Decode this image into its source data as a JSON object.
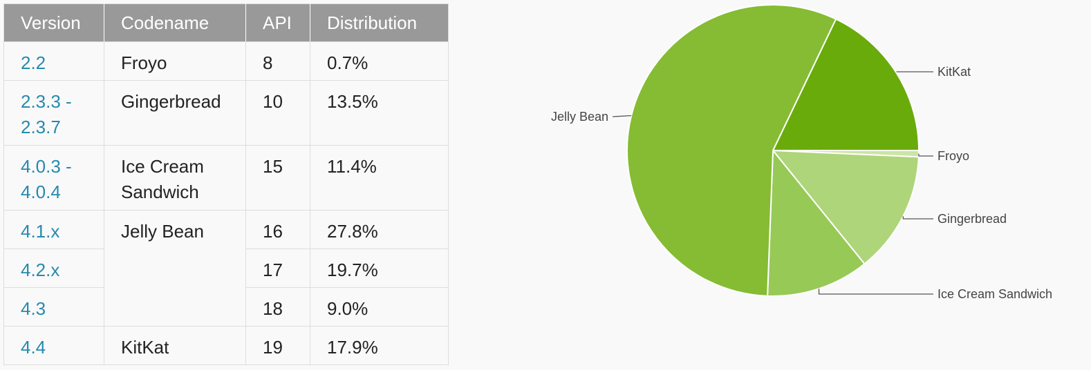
{
  "table": {
    "headers": [
      "Version",
      "Codename",
      "API",
      "Distribution"
    ],
    "rows": [
      {
        "version": "2.2",
        "codename": "Froyo",
        "api": "8",
        "distribution": "0.7%"
      },
      {
        "version": "2.3.3 -\n2.3.7",
        "codename": "Gingerbread",
        "api": "10",
        "distribution": "13.5%"
      },
      {
        "version": "4.0.3 -\n4.0.4",
        "codename": "Ice Cream\nSandwich",
        "api": "15",
        "distribution": "11.4%"
      },
      {
        "version": "4.1.x",
        "codename": "Jelly Bean",
        "api": "16",
        "distribution": "27.8%"
      },
      {
        "version": "4.2.x",
        "api": "17",
        "distribution": "19.7%"
      },
      {
        "version": "4.3",
        "api": "18",
        "distribution": "9.0%"
      },
      {
        "version": "4.4",
        "codename": "KitKat",
        "api": "19",
        "distribution": "17.9%"
      }
    ]
  },
  "chart_data": {
    "type": "pie",
    "title": "",
    "slices": [
      {
        "label": "KitKat",
        "value": 17.9,
        "color": "#6aab0c"
      },
      {
        "label": "Froyo",
        "value": 0.7,
        "color": "#cbe5a5"
      },
      {
        "label": "Gingerbread",
        "value": 13.5,
        "color": "#aed57a"
      },
      {
        "label": "Ice Cream Sandwich",
        "value": 11.4,
        "color": "#97c957"
      },
      {
        "label": "Jelly Bean",
        "value": 56.5,
        "color": "#85bc33"
      }
    ],
    "start_angle_deg": 90,
    "direction": "clockwise",
    "separator_color": "#ffffff",
    "leader_color": "#555555"
  }
}
